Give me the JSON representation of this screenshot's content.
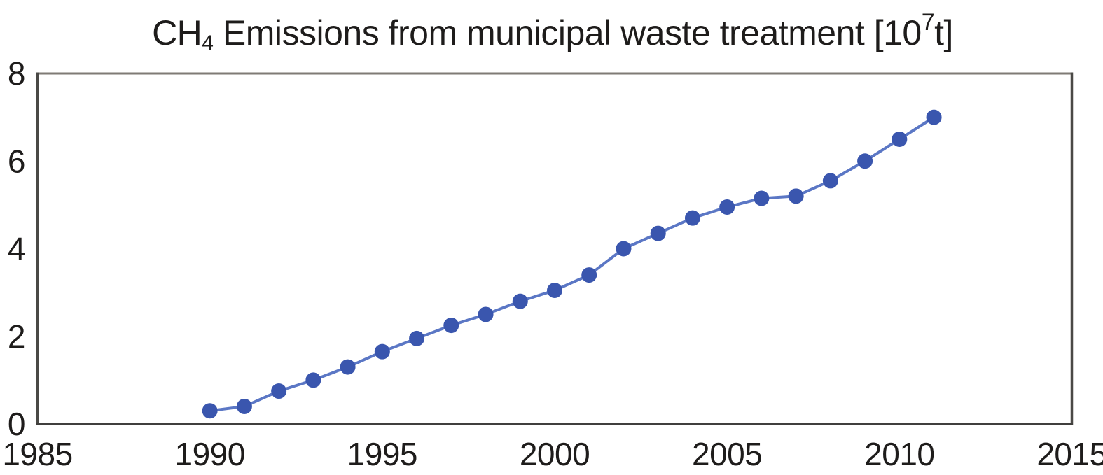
{
  "title": {
    "prefix": "CH",
    "subscript": "4",
    "middle": " Emissions from municipal waste treatment [10",
    "superscript": "7",
    "suffix": "t]"
  },
  "colors": {
    "background": "#ffffff",
    "text": "#1e1c1b",
    "border_top": "#7f7b75",
    "border_side": "#4a4946",
    "border_bottom": "#403f3d",
    "line": "#5b77c5",
    "marker": "#3a56ae"
  },
  "chart_data": {
    "type": "line",
    "title": "CH_4 Emissions from municipal waste treatment [10^7 t]",
    "xlabel": "",
    "ylabel": "",
    "xlim": [
      1985,
      2015
    ],
    "ylim": [
      0,
      8
    ],
    "xticks": [
      1985,
      1990,
      1995,
      2000,
      2005,
      2010,
      2015
    ],
    "yticks": [
      0,
      2,
      4,
      6,
      8
    ],
    "grid": false,
    "legend": false,
    "marker": "circle",
    "series": [
      {
        "name": "CH4 emissions from municipal waste treatment",
        "x": [
          1990,
          1991,
          1992,
          1993,
          1994,
          1995,
          1996,
          1997,
          1998,
          1999,
          2000,
          2001,
          2002,
          2003,
          2004,
          2005,
          2006,
          2007,
          2008,
          2009,
          2010,
          2011
        ],
        "y": [
          0.3,
          0.4,
          0.75,
          1.0,
          1.3,
          1.65,
          1.95,
          2.25,
          2.5,
          2.8,
          3.05,
          3.4,
          4.0,
          4.35,
          4.7,
          4.95,
          5.15,
          5.2,
          5.55,
          6.0,
          6.5,
          7.0
        ]
      }
    ]
  }
}
